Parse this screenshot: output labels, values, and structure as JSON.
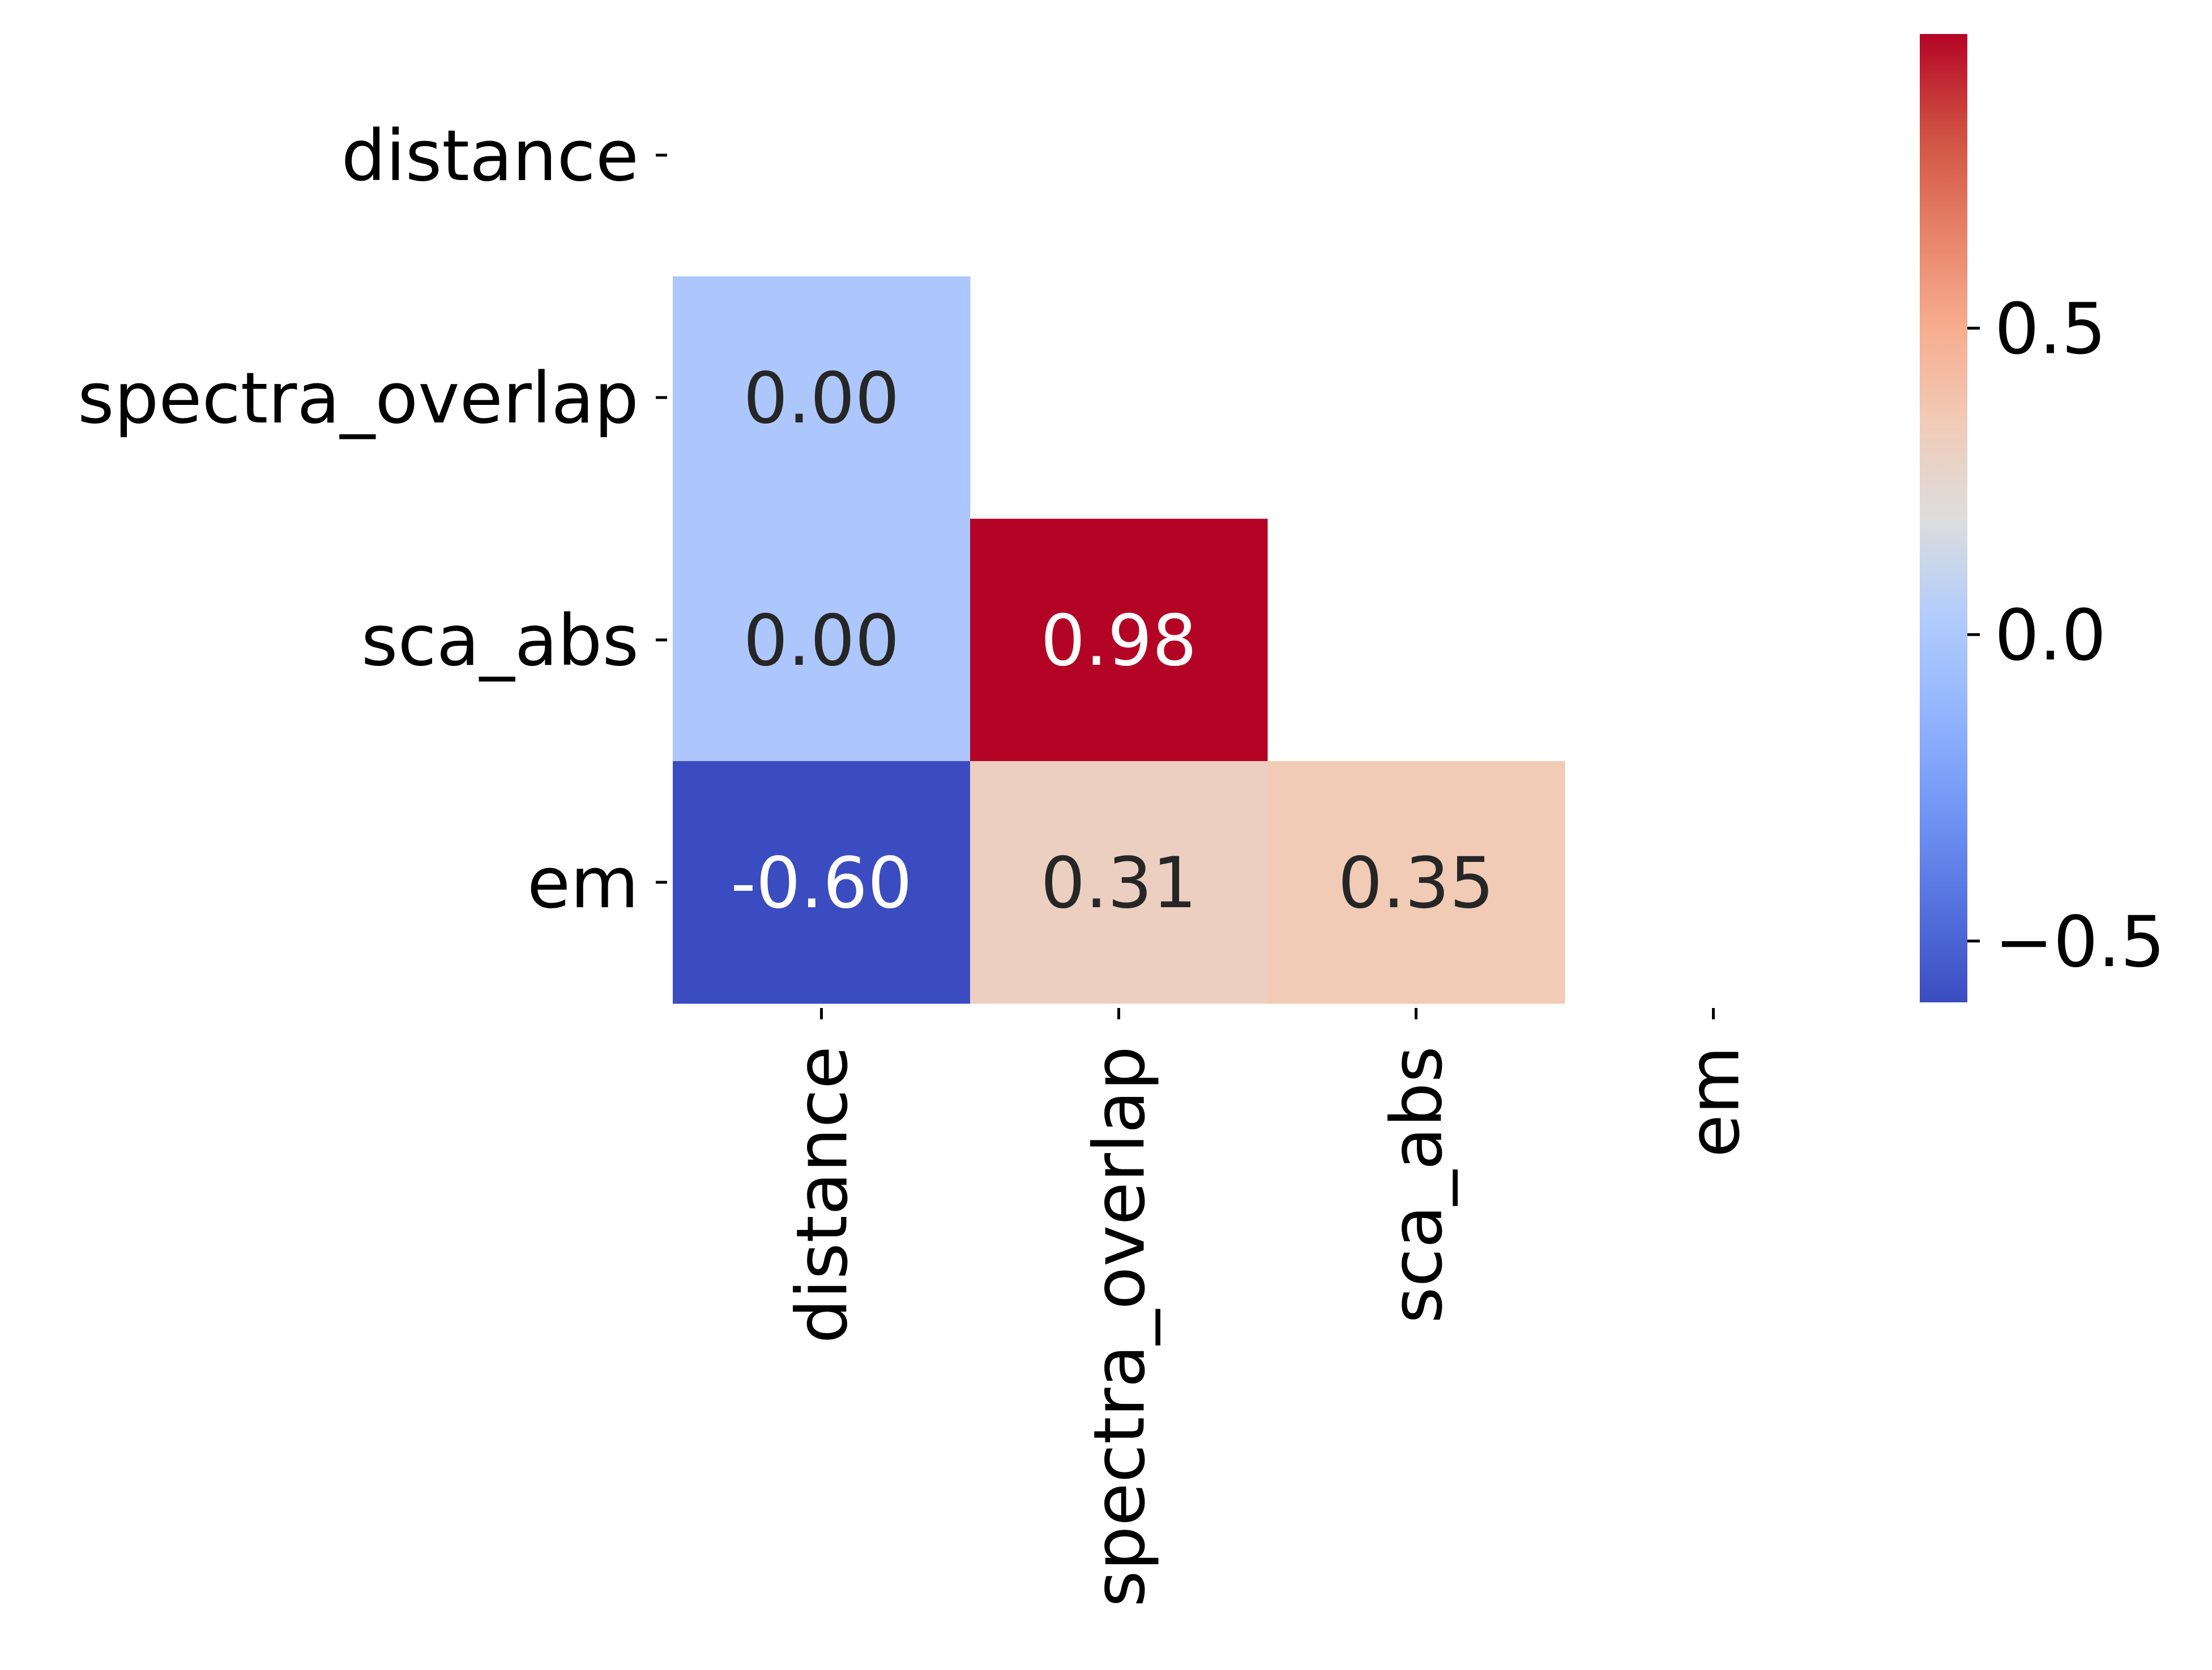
{
  "chart_data": {
    "type": "heatmap",
    "variables": [
      "distance",
      "spectra_overlap",
      "sca_abs",
      "em"
    ],
    "row_labels": [
      "distance",
      "spectra_overlap",
      "sca_abs",
      "em"
    ],
    "col_labels": [
      "distance",
      "spectra_overlap",
      "sca_abs",
      "em"
    ],
    "mask": "upper triangle including diagonal",
    "cells": [
      {
        "row": "spectra_overlap",
        "col": "distance",
        "value": 0.0,
        "label": "0.00"
      },
      {
        "row": "sca_abs",
        "col": "distance",
        "value": 0.0,
        "label": "0.00"
      },
      {
        "row": "sca_abs",
        "col": "spectra_overlap",
        "value": 0.98,
        "label": "0.98"
      },
      {
        "row": "em",
        "col": "distance",
        "value": -0.6,
        "label": "-0.60"
      },
      {
        "row": "em",
        "col": "spectra_overlap",
        "value": 0.31,
        "label": "0.31"
      },
      {
        "row": "em",
        "col": "sca_abs",
        "value": 0.35,
        "label": "0.35"
      }
    ],
    "colormap": "coolwarm",
    "colorbar": {
      "vmin": -0.6,
      "vmax": 0.98,
      "ticks": [
        -0.5,
        0.0,
        0.5
      ],
      "tick_labels": [
        "−0.5",
        "0.0",
        "0.5"
      ]
    },
    "title": "",
    "xlabel": "",
    "ylabel": "",
    "grid": false
  }
}
